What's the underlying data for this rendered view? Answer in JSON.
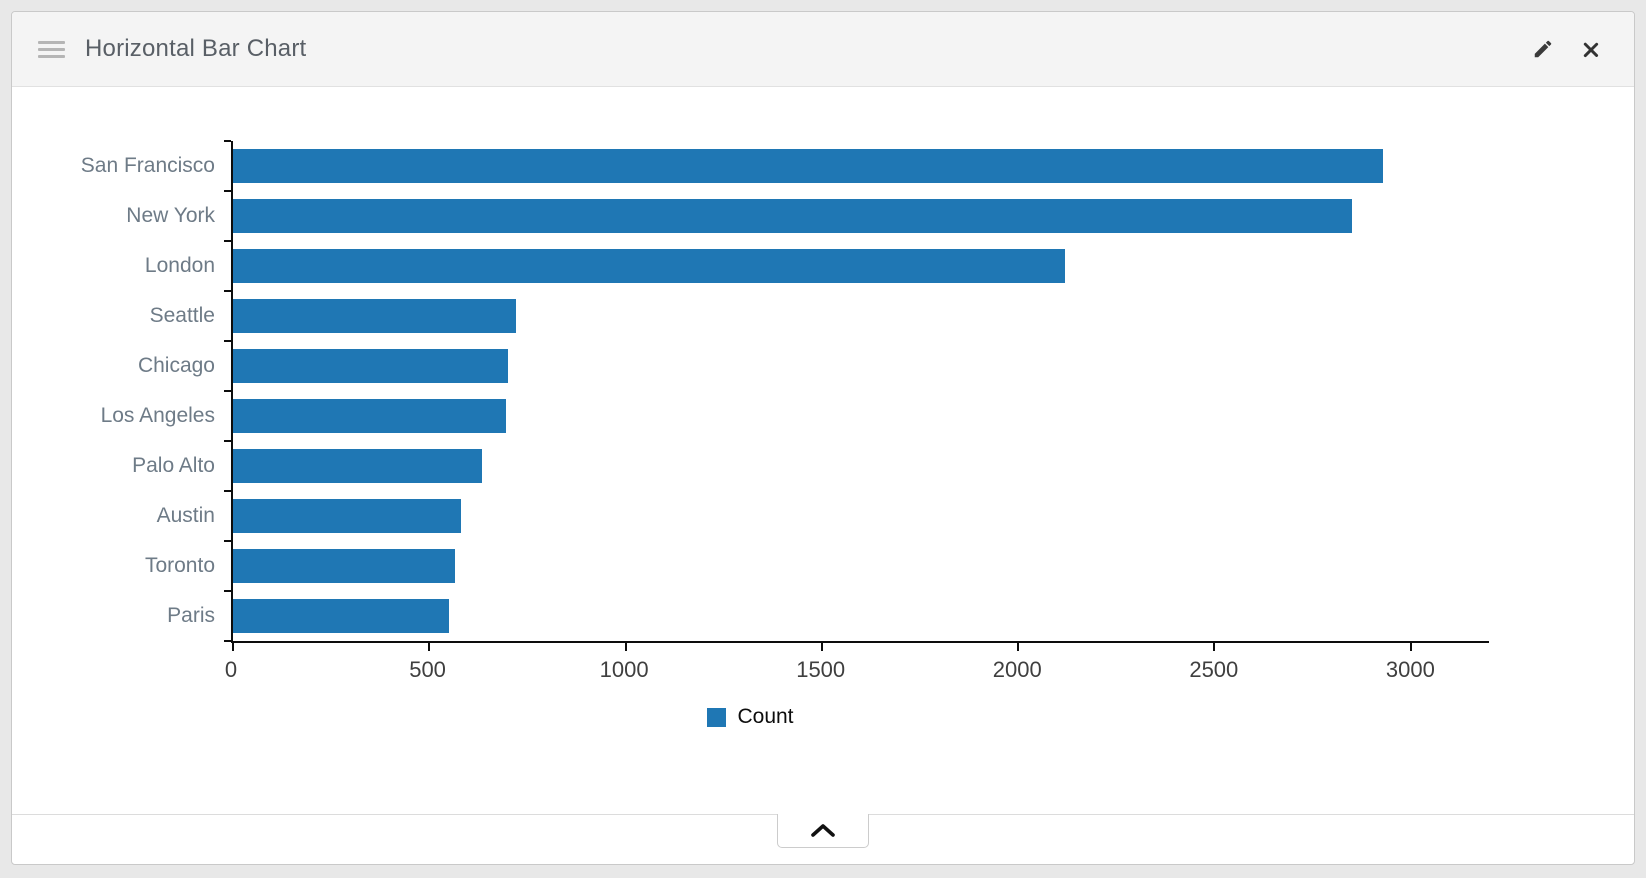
{
  "panel": {
    "title": "Horizontal Bar Chart"
  },
  "colors": {
    "bar": "#1f77b4",
    "axis": "#0d0d0d",
    "category_label": "#6e7b87",
    "tick_label": "#3f3f3f"
  },
  "icons": {
    "drag_handle": "≡",
    "edit": "✎",
    "close": "✖",
    "collapse": "⌃"
  },
  "chart_data": {
    "type": "bar",
    "orientation": "horizontal",
    "title": "Horizontal Bar Chart",
    "categories": [
      "San Francisco",
      "New York",
      "London",
      "Seattle",
      "Chicago",
      "Los Angeles",
      "Palo Alto",
      "Austin",
      "Toronto",
      "Paris"
    ],
    "values": [
      2930,
      2850,
      2120,
      720,
      700,
      695,
      635,
      580,
      565,
      550
    ],
    "series_name": "Count",
    "legend": [
      "Count"
    ],
    "legend_position": "bottom",
    "xlim": [
      0,
      3200
    ],
    "xticks": [
      0,
      500,
      1000,
      1500,
      2000,
      2500,
      3000
    ],
    "grid": false,
    "bar_color": "#1f77b4"
  }
}
